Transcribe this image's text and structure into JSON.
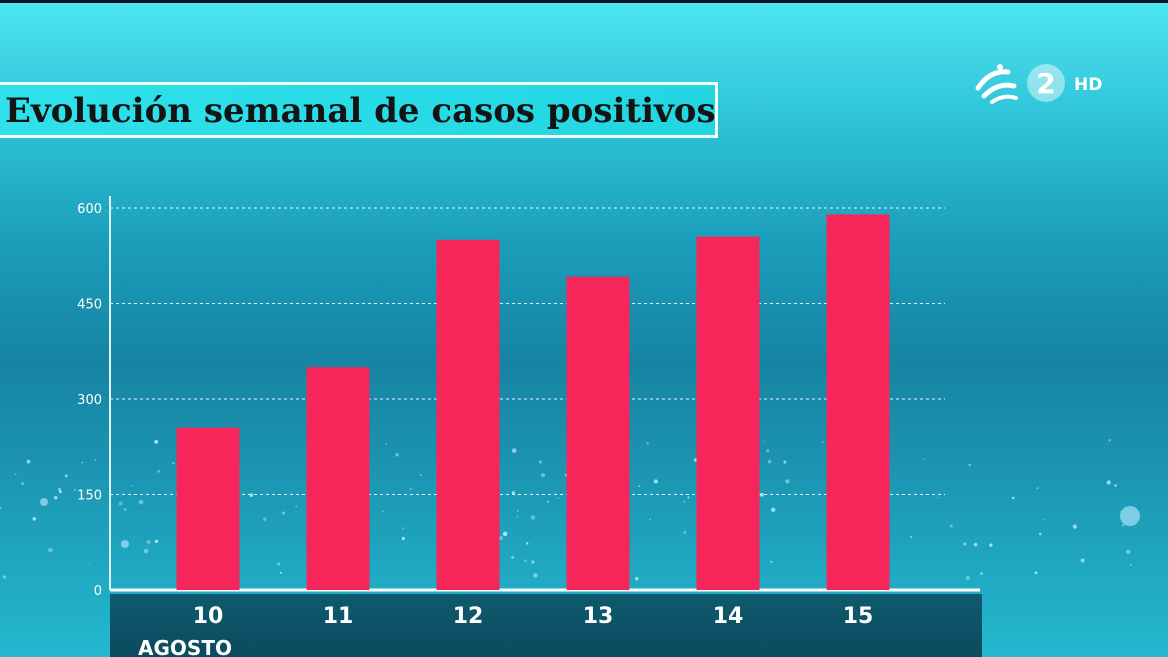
{
  "chart_data": {
    "type": "bar",
    "title": "Evolución semanal de casos positivos",
    "categories": [
      "10",
      "11",
      "12",
      "13",
      "14",
      "15"
    ],
    "values": [
      255,
      350,
      550,
      492,
      555,
      590
    ],
    "xlabel": "AGOSTO",
    "ylabel": "",
    "ylim": [
      0,
      600
    ],
    "yticks": [
      0,
      150,
      300,
      450,
      600
    ],
    "grid": true,
    "bar_color": "#f7265a",
    "grid_color": "#dff7fb",
    "axis_text_color": "#ffffff"
  },
  "channel_logo": {
    "number": "2",
    "label": "HD",
    "icon": "eitb-swoosh-icon"
  }
}
